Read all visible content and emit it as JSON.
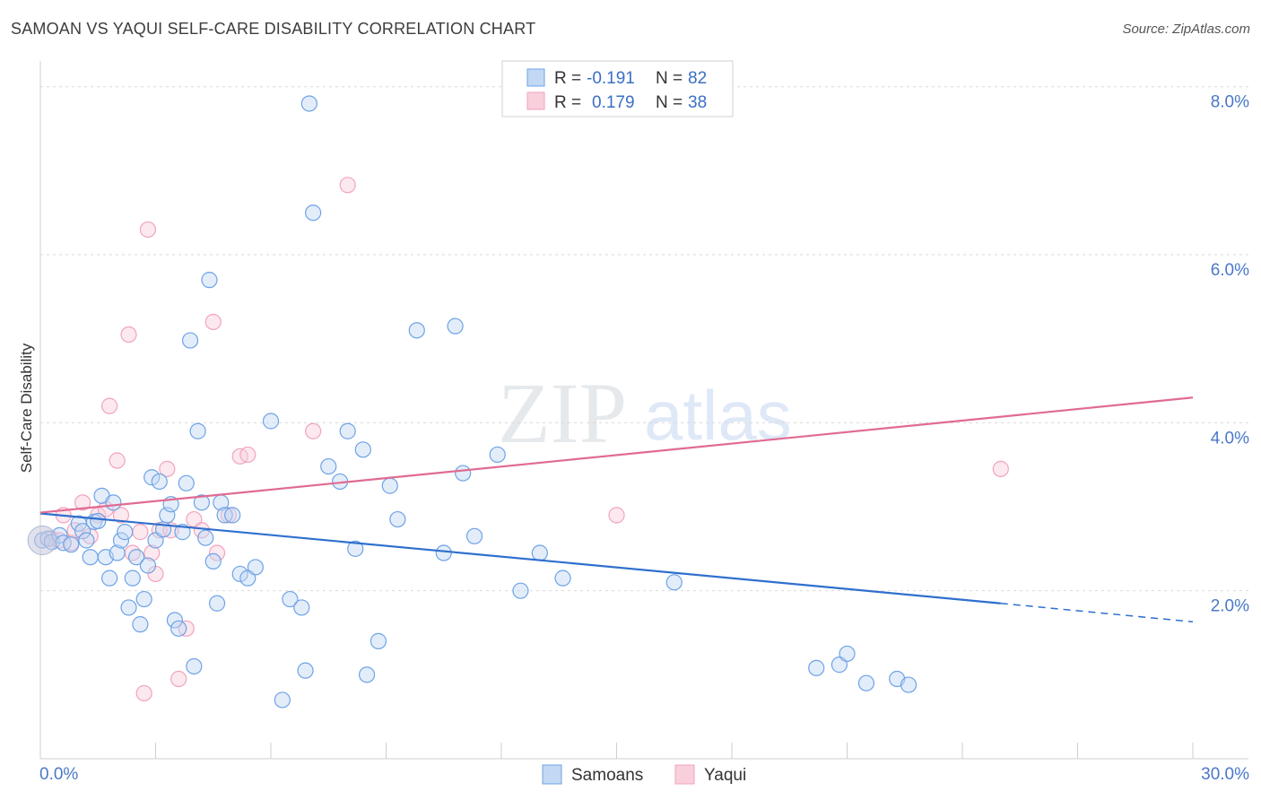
{
  "header": {
    "title": "SAMOAN VS YAQUI SELF-CARE DISABILITY CORRELATION CHART",
    "source": "Source: ZipAtlas.com"
  },
  "watermark": {
    "zip": "ZIP",
    "atlas": "atlas"
  },
  "chart_data": {
    "type": "scatter",
    "title": "SAMOAN VS YAQUI SELF-CARE DISABILITY CORRELATION CHART",
    "xlabel": "",
    "ylabel": "Self-Care Disability",
    "xlim": [
      0,
      30
    ],
    "ylim": [
      0,
      8.2
    ],
    "x_tick_labels": [
      "0.0%",
      "30.0%"
    ],
    "y_ticks": [
      2,
      4,
      6,
      8
    ],
    "y_tick_labels": [
      "2.0%",
      "4.0%",
      "6.0%",
      "8.0%"
    ],
    "grid": true,
    "legend_position": "top-center",
    "stats_legend": [
      {
        "series": "Samoans",
        "r_label": "R =",
        "r": "-0.191",
        "n_label": "N =",
        "n": "82"
      },
      {
        "series": "Yaqui",
        "r_label": "R =",
        "r": "0.179",
        "n_label": "N =",
        "n": "38"
      }
    ],
    "series": [
      {
        "name": "Samoans",
        "color": "#6ea3e6",
        "line_color": "#2f6fce",
        "trend": {
          "x0": 0,
          "y0": 2.92,
          "x1": 25,
          "y1": 1.85,
          "dash_to": 30,
          "dash_y": 1.63
        },
        "points": [
          [
            0.05,
            2.6
          ],
          [
            0.2,
            2.62
          ],
          [
            0.3,
            2.58
          ],
          [
            0.5,
            2.66
          ],
          [
            0.6,
            2.57
          ],
          [
            0.8,
            2.55
          ],
          [
            1.0,
            2.8
          ],
          [
            1.1,
            2.71
          ],
          [
            1.2,
            2.6
          ],
          [
            1.3,
            2.4
          ],
          [
            1.4,
            2.82
          ],
          [
            1.5,
            2.83
          ],
          [
            1.6,
            3.13
          ],
          [
            1.7,
            2.4
          ],
          [
            1.8,
            2.15
          ],
          [
            1.9,
            3.05
          ],
          [
            2.0,
            2.45
          ],
          [
            2.1,
            2.6
          ],
          [
            2.2,
            2.7
          ],
          [
            2.3,
            1.8
          ],
          [
            2.4,
            2.15
          ],
          [
            2.5,
            2.4
          ],
          [
            2.6,
            1.6
          ],
          [
            2.7,
            1.9
          ],
          [
            2.8,
            2.3
          ],
          [
            2.9,
            3.35
          ],
          [
            3.0,
            2.6
          ],
          [
            3.1,
            3.3
          ],
          [
            3.2,
            2.73
          ],
          [
            3.3,
            2.9
          ],
          [
            3.4,
            3.03
          ],
          [
            3.5,
            1.65
          ],
          [
            3.6,
            1.55
          ],
          [
            3.7,
            2.7
          ],
          [
            3.8,
            3.28
          ],
          [
            3.9,
            4.98
          ],
          [
            4.0,
            1.1
          ],
          [
            4.1,
            3.9
          ],
          [
            4.2,
            3.05
          ],
          [
            4.3,
            2.63
          ],
          [
            4.4,
            5.7
          ],
          [
            4.5,
            2.35
          ],
          [
            4.6,
            1.85
          ],
          [
            4.7,
            3.05
          ],
          [
            4.8,
            2.9
          ],
          [
            5.0,
            2.9
          ],
          [
            5.2,
            2.2
          ],
          [
            5.4,
            2.15
          ],
          [
            5.6,
            2.28
          ],
          [
            6.0,
            4.02
          ],
          [
            6.3,
            0.7
          ],
          [
            6.5,
            1.9
          ],
          [
            6.8,
            1.8
          ],
          [
            6.9,
            1.05
          ],
          [
            7.0,
            7.8
          ],
          [
            7.1,
            6.5
          ],
          [
            7.5,
            3.48
          ],
          [
            7.8,
            3.3
          ],
          [
            8.0,
            3.9
          ],
          [
            8.2,
            2.5
          ],
          [
            8.4,
            3.68
          ],
          [
            8.5,
            1.0
          ],
          [
            8.8,
            1.4
          ],
          [
            9.1,
            3.25
          ],
          [
            9.3,
            2.85
          ],
          [
            9.8,
            5.1
          ],
          [
            10.5,
            2.45
          ],
          [
            10.8,
            5.15
          ],
          [
            11.0,
            3.4
          ],
          [
            11.3,
            2.65
          ],
          [
            11.9,
            3.62
          ],
          [
            12.5,
            2.0
          ],
          [
            13.0,
            2.45
          ],
          [
            13.6,
            2.15
          ],
          [
            16.5,
            2.1
          ],
          [
            20.2,
            1.08
          ],
          [
            20.8,
            1.12
          ],
          [
            21.0,
            1.25
          ],
          [
            21.5,
            0.9
          ],
          [
            22.3,
            0.95
          ],
          [
            22.6,
            0.88
          ]
        ]
      },
      {
        "name": "Yaqui",
        "color": "#f2a3bd",
        "line_color": "#e06b92",
        "trend": {
          "x0": 0,
          "y0": 2.93,
          "x1": 30,
          "y1": 4.3
        },
        "points": [
          [
            0.3,
            2.62
          ],
          [
            0.5,
            2.6
          ],
          [
            0.6,
            2.9
          ],
          [
            0.8,
            2.57
          ],
          [
            0.9,
            2.72
          ],
          [
            1.1,
            3.05
          ],
          [
            1.3,
            2.65
          ],
          [
            1.5,
            2.9
          ],
          [
            1.7,
            2.97
          ],
          [
            1.8,
            4.2
          ],
          [
            2.0,
            3.55
          ],
          [
            2.1,
            2.9
          ],
          [
            2.3,
            5.05
          ],
          [
            2.4,
            2.45
          ],
          [
            2.6,
            2.7
          ],
          [
            2.7,
            0.78
          ],
          [
            2.8,
            6.3
          ],
          [
            2.9,
            2.45
          ],
          [
            3.0,
            2.2
          ],
          [
            3.1,
            2.72
          ],
          [
            3.3,
            3.45
          ],
          [
            3.4,
            2.72
          ],
          [
            3.6,
            0.95
          ],
          [
            3.8,
            1.55
          ],
          [
            4.0,
            2.85
          ],
          [
            4.2,
            2.72
          ],
          [
            4.5,
            5.2
          ],
          [
            4.6,
            2.45
          ],
          [
            4.9,
            2.9
          ],
          [
            5.2,
            3.6
          ],
          [
            5.4,
            3.62
          ],
          [
            7.1,
            3.9
          ],
          [
            8.0,
            6.83
          ],
          [
            15.0,
            2.9
          ],
          [
            25.0,
            3.45
          ]
        ]
      }
    ]
  }
}
